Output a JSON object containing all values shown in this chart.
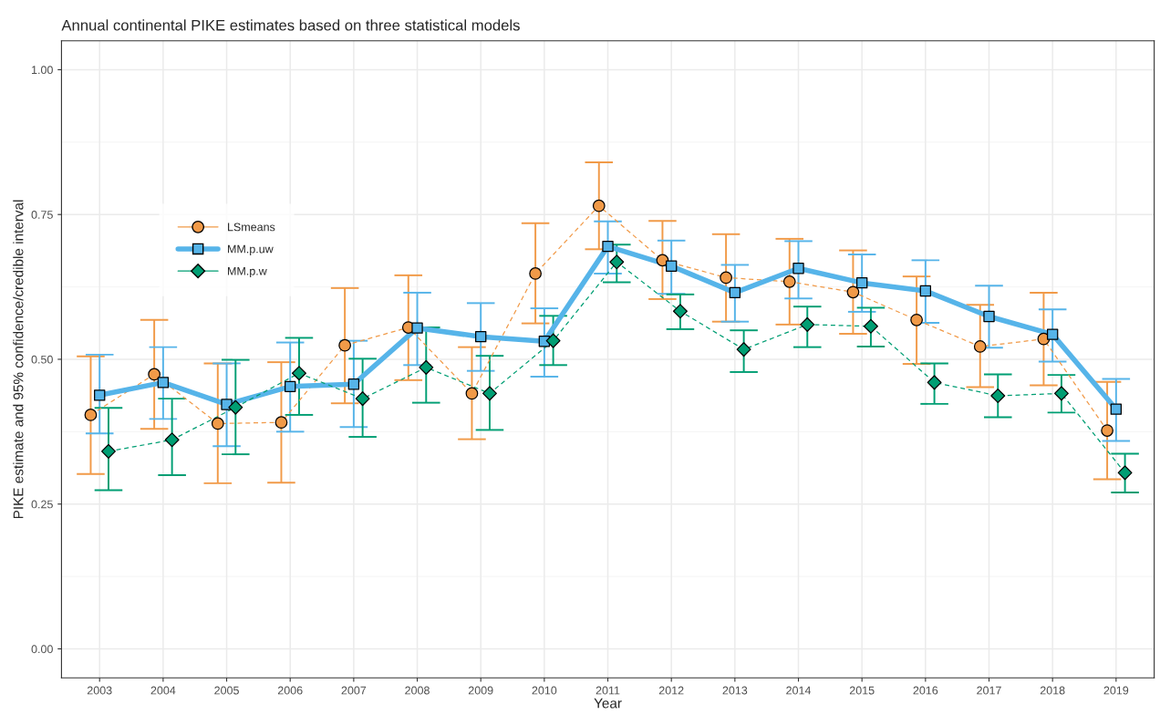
{
  "chart_data": {
    "type": "line",
    "subtitle": "Annual continental PIKE estimates based on three statistical models",
    "xlabel": "Year",
    "ylabel": "PIKE estimate and 95% confidence/credible interval",
    "categories": [
      "2003",
      "2004",
      "2005",
      "2006",
      "2007",
      "2008",
      "2009",
      "2010",
      "2011",
      "2012",
      "2013",
      "2014",
      "2015",
      "2016",
      "2017",
      "2018",
      "2019"
    ],
    "ylim": [
      -0.05,
      1.05
    ],
    "yticks": [
      {
        "value": 0,
        "label": "0.00"
      },
      {
        "value": 0.25,
        "label": "0.25"
      },
      {
        "value": 0.5,
        "label": "0.50"
      },
      {
        "value": 0.75,
        "label": "0.75"
      },
      {
        "value": 1,
        "label": "1.00"
      }
    ],
    "grid": true,
    "legend": "top left",
    "series": [
      {
        "name": "LSmeans",
        "color": "#f19a48",
        "marker": "circle",
        "line_style": "dashed",
        "values": [
          0.404,
          0.474,
          0.389,
          0.391,
          0.524,
          0.555,
          0.441,
          0.648,
          0.765,
          0.671,
          0.641,
          0.634,
          0.616,
          0.568,
          0.522,
          0.535,
          0.377
        ],
        "errors": [
          [
            0.302,
            0.505
          ],
          [
            0.38,
            0.568
          ],
          [
            0.286,
            0.493
          ],
          [
            0.287,
            0.495
          ],
          [
            0.424,
            0.623
          ],
          [
            0.464,
            0.645
          ],
          [
            0.362,
            0.521
          ],
          [
            0.562,
            0.735
          ],
          [
            0.69,
            0.84
          ],
          [
            0.604,
            0.739
          ],
          [
            0.565,
            0.716
          ],
          [
            0.56,
            0.708
          ],
          [
            0.544,
            0.688
          ],
          [
            0.492,
            0.643
          ],
          [
            0.452,
            0.594
          ],
          [
            0.455,
            0.615
          ],
          [
            0.293,
            0.461
          ]
        ]
      },
      {
        "name": "MM.p.uw",
        "color": "#56b4e9",
        "marker": "square",
        "line_style": "solid",
        "values": [
          0.438,
          0.46,
          0.422,
          0.453,
          0.457,
          0.554,
          0.539,
          0.531,
          0.695,
          0.661,
          0.615,
          0.657,
          0.632,
          0.618,
          0.574,
          0.543,
          0.414
        ],
        "errors": [
          [
            0.372,
            0.508
          ],
          [
            0.397,
            0.521
          ],
          [
            0.35,
            0.493
          ],
          [
            0.375,
            0.529
          ],
          [
            0.383,
            0.532
          ],
          [
            0.49,
            0.615
          ],
          [
            0.48,
            0.597
          ],
          [
            0.47,
            0.588
          ],
          [
            0.648,
            0.738
          ],
          [
            0.613,
            0.705
          ],
          [
            0.565,
            0.663
          ],
          [
            0.605,
            0.704
          ],
          [
            0.582,
            0.681
          ],
          [
            0.563,
            0.671
          ],
          [
            0.52,
            0.627
          ],
          [
            0.496,
            0.586
          ],
          [
            0.359,
            0.466
          ]
        ]
      },
      {
        "name": "MM.p.w",
        "color": "#009e73",
        "marker": "diamond",
        "line_style": "dashed",
        "values": [
          0.341,
          0.361,
          0.417,
          0.476,
          0.432,
          0.486,
          0.441,
          0.532,
          0.668,
          0.583,
          0.517,
          0.56,
          0.557,
          0.46,
          0.437,
          0.441,
          0.304
        ],
        "errors": [
          [
            0.274,
            0.416
          ],
          [
            0.3,
            0.432
          ],
          [
            0.336,
            0.499
          ],
          [
            0.404,
            0.537
          ],
          [
            0.366,
            0.501
          ],
          [
            0.425,
            0.555
          ],
          [
            0.378,
            0.506
          ],
          [
            0.49,
            0.575
          ],
          [
            0.633,
            0.698
          ],
          [
            0.552,
            0.612
          ],
          [
            0.478,
            0.55
          ],
          [
            0.521,
            0.591
          ],
          [
            0.522,
            0.589
          ],
          [
            0.423,
            0.493
          ],
          [
            0.4,
            0.474
          ],
          [
            0.408,
            0.473
          ],
          [
            0.27,
            0.337
          ]
        ]
      }
    ]
  }
}
